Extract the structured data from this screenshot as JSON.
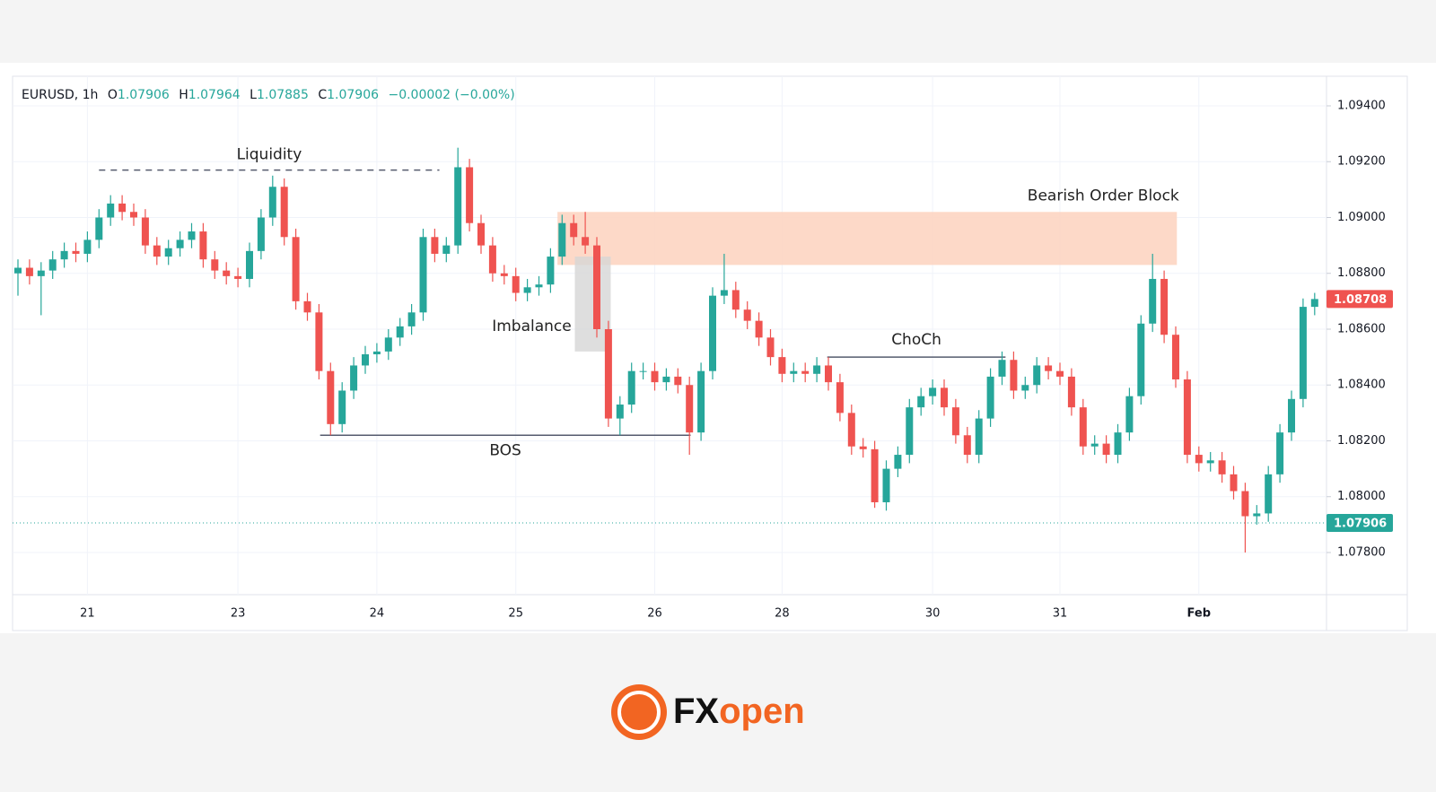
{
  "chart_data": {
    "type": "candlestick",
    "header": {
      "symbol": "EURUSD, 1h",
      "o_label": "O",
      "open": 1.07906,
      "h_label": "H",
      "high": 1.07964,
      "l_label": "L",
      "low": 1.07885,
      "c_label": "C",
      "close": 1.07906,
      "change": "−0.00002 (−0.00%)"
    },
    "up_color": "#26a69a",
    "down_color": "#ef5350",
    "categories": [
      null,
      null,
      null,
      null,
      null,
      null,
      "21",
      null,
      null,
      null,
      null,
      null,
      null,
      null,
      null,
      null,
      null,
      null,
      null,
      "23",
      null,
      null,
      null,
      null,
      null,
      null,
      null,
      null,
      null,
      null,
      null,
      "24",
      null,
      null,
      null,
      null,
      null,
      null,
      null,
      null,
      null,
      null,
      null,
      "25",
      null,
      null,
      null,
      null,
      null,
      null,
      null,
      null,
      null,
      null,
      null,
      "26",
      null,
      null,
      null,
      null,
      null,
      null,
      null,
      null,
      null,
      null,
      "28",
      null,
      null,
      null,
      null,
      null,
      null,
      null,
      null,
      null,
      null,
      null,
      null,
      "30",
      null,
      null,
      null,
      null,
      null,
      null,
      null,
      null,
      null,
      null,
      "31",
      null,
      null,
      null,
      null,
      null,
      null,
      null,
      null,
      null,
      null,
      null,
      "Feb",
      null,
      null,
      null,
      null,
      null,
      null,
      null,
      null,
      null,
      null
    ],
    "open": [
      1.088,
      1.0882,
      1.0879,
      1.0881,
      1.0885,
      1.0888,
      1.0887,
      1.0892,
      1.09,
      1.0905,
      1.0902,
      1.09,
      1.089,
      1.0886,
      1.0889,
      1.0892,
      1.0895,
      1.0885,
      1.0881,
      1.0879,
      1.0878,
      1.0888,
      1.09,
      1.0911,
      1.0893,
      1.087,
      1.0866,
      1.0845,
      1.0826,
      1.0838,
      1.0847,
      1.0851,
      1.0852,
      1.0857,
      1.0861,
      1.0866,
      1.0893,
      1.0887,
      1.089,
      1.0918,
      1.0898,
      1.089,
      1.088,
      1.0879,
      1.0873,
      1.0875,
      1.0876,
      1.0886,
      1.0898,
      1.0893,
      1.089,
      1.086,
      1.0828,
      1.0833,
      1.0845,
      1.0845,
      1.0841,
      1.0843,
      1.084,
      1.0823,
      1.0845,
      1.0872,
      1.0874,
      1.0867,
      1.0863,
      1.0857,
      1.085,
      1.0844,
      1.0845,
      1.0844,
      1.0847,
      1.0841,
      1.083,
      1.0818,
      1.0817,
      1.0798,
      1.081,
      1.0815,
      1.0832,
      1.0836,
      1.0839,
      1.0832,
      1.0822,
      1.0815,
      1.0828,
      1.0843,
      1.0849,
      1.0838,
      1.084,
      1.0847,
      1.0845,
      1.0843,
      1.0832,
      1.0818,
      1.0819,
      1.0815,
      1.0823,
      1.0836,
      1.0862,
      1.0878,
      1.0858,
      1.0842,
      1.0815,
      1.0812,
      1.0813,
      1.0808,
      1.0802,
      1.0793,
      1.0794,
      1.0808,
      1.0823,
      1.0835,
      1.0868
    ],
    "high": [
      1.0885,
      1.0885,
      1.0884,
      1.0888,
      1.0891,
      1.0891,
      1.0895,
      1.0903,
      1.0908,
      1.0908,
      1.0905,
      1.0903,
      1.0893,
      1.0892,
      1.0895,
      1.0898,
      1.0898,
      1.0888,
      1.0884,
      1.0882,
      1.0891,
      1.0903,
      1.0915,
      1.0914,
      1.0896,
      1.0873,
      1.0869,
      1.0848,
      1.0841,
      1.085,
      1.0854,
      1.0855,
      1.086,
      1.0864,
      1.0869,
      1.0896,
      1.0896,
      1.0893,
      1.0925,
      1.0921,
      1.0901,
      1.0893,
      1.0883,
      1.0882,
      1.0878,
      1.0879,
      1.0889,
      1.0901,
      1.0901,
      1.0902,
      1.0893,
      1.0863,
      1.0836,
      1.0848,
      1.0848,
      1.0848,
      1.0846,
      1.0846,
      1.0843,
      1.0848,
      1.0875,
      1.0887,
      1.0877,
      1.087,
      1.0866,
      1.086,
      1.0853,
      1.0848,
      1.0848,
      1.085,
      1.085,
      1.0844,
      1.0833,
      1.0821,
      1.082,
      1.0813,
      1.0818,
      1.0835,
      1.0839,
      1.0842,
      1.0842,
      1.0835,
      1.0825,
      1.0831,
      1.0846,
      1.0852,
      1.0852,
      1.0843,
      1.085,
      1.085,
      1.0848,
      1.0846,
      1.0835,
      1.0822,
      1.0822,
      1.0826,
      1.0839,
      1.0865,
      1.0887,
      1.0881,
      1.0861,
      1.0845,
      1.0818,
      1.0816,
      1.0816,
      1.0811,
      1.0805,
      1.0797,
      1.0811,
      1.0826,
      1.0838,
      1.0871,
      1.0873
    ],
    "low": [
      1.0872,
      1.0876,
      1.0865,
      1.0878,
      1.0882,
      1.0884,
      1.0884,
      1.0889,
      1.0897,
      1.0899,
      1.0897,
      1.0887,
      1.0883,
      1.0883,
      1.0886,
      1.0889,
      1.0882,
      1.0878,
      1.0876,
      1.0875,
      1.0875,
      1.0885,
      1.0897,
      1.089,
      1.0867,
      1.0863,
      1.0842,
      1.0822,
      1.0823,
      1.0835,
      1.0844,
      1.0848,
      1.0849,
      1.0854,
      1.0858,
      1.0863,
      1.0884,
      1.0884,
      1.0887,
      1.0895,
      1.0887,
      1.0877,
      1.0876,
      1.087,
      1.087,
      1.0872,
      1.0873,
      1.0883,
      1.089,
      1.0887,
      1.0857,
      1.0825,
      1.0822,
      1.083,
      1.0842,
      1.0838,
      1.0838,
      1.0837,
      1.0815,
      1.082,
      1.0842,
      1.0869,
      1.0864,
      1.086,
      1.0854,
      1.0847,
      1.0841,
      1.0841,
      1.0841,
      1.0841,
      1.0838,
      1.0827,
      1.0815,
      1.0814,
      1.0796,
      1.0795,
      1.0807,
      1.0812,
      1.0829,
      1.0833,
      1.0829,
      1.0819,
      1.0812,
      1.0812,
      1.0825,
      1.084,
      1.0835,
      1.0835,
      1.0837,
      1.0842,
      1.084,
      1.0829,
      1.0815,
      1.0815,
      1.0812,
      1.0812,
      1.082,
      1.0833,
      1.0859,
      1.0855,
      1.0839,
      1.0812,
      1.0809,
      1.0809,
      1.0805,
      1.0799,
      1.078,
      1.079,
      1.0791,
      1.0805,
      1.082,
      1.0832,
      1.0865
    ],
    "close": [
      1.0882,
      1.0879,
      1.0881,
      1.0885,
      1.0888,
      1.0887,
      1.0892,
      1.09,
      1.0905,
      1.0902,
      1.09,
      1.089,
      1.0886,
      1.0889,
      1.0892,
      1.0895,
      1.0885,
      1.0881,
      1.0879,
      1.0878,
      1.0888,
      1.09,
      1.0911,
      1.0893,
      1.087,
      1.0866,
      1.0845,
      1.0826,
      1.0838,
      1.0847,
      1.0851,
      1.0852,
      1.0857,
      1.0861,
      1.0866,
      1.0893,
      1.0887,
      1.089,
      1.0918,
      1.0898,
      1.089,
      1.088,
      1.0879,
      1.0873,
      1.0875,
      1.0876,
      1.0886,
      1.0898,
      1.0893,
      1.089,
      1.086,
      1.0828,
      1.0833,
      1.0845,
      1.0845,
      1.0841,
      1.0843,
      1.084,
      1.0823,
      1.0845,
      1.0872,
      1.0874,
      1.0867,
      1.0863,
      1.0857,
      1.085,
      1.0844,
      1.0845,
      1.0844,
      1.0847,
      1.0841,
      1.083,
      1.0818,
      1.0817,
      1.0798,
      1.081,
      1.0815,
      1.0832,
      1.0836,
      1.0839,
      1.0832,
      1.0822,
      1.0815,
      1.0828,
      1.0843,
      1.0849,
      1.0838,
      1.084,
      1.0847,
      1.0845,
      1.0843,
      1.0832,
      1.0818,
      1.0819,
      1.0815,
      1.0823,
      1.0836,
      1.0862,
      1.0878,
      1.0858,
      1.0842,
      1.0815,
      1.0812,
      1.0813,
      1.0808,
      1.0802,
      1.0793,
      1.0794,
      1.0808,
      1.0823,
      1.0835,
      1.0868,
      1.08708
    ],
    "ylim": [
      1.07649,
      1.09506
    ],
    "yticks": [
      {
        "value": 1.078,
        "label": "1.07800"
      },
      {
        "value": 1.08,
        "label": "1.08000"
      },
      {
        "value": 1.082,
        "label": "1.08200"
      },
      {
        "value": 1.084,
        "label": "1.08400"
      },
      {
        "value": 1.086,
        "label": "1.08600"
      },
      {
        "value": 1.088,
        "label": "1.08800"
      },
      {
        "value": 1.09,
        "label": "1.09000"
      },
      {
        "value": 1.092,
        "label": "1.09200"
      },
      {
        "value": 1.094,
        "label": "1.09400"
      }
    ],
    "grid": true,
    "last_price": 1.08708,
    "current_price": 1.07906,
    "annotations": {
      "liquidity": {
        "text": "Liquidity",
        "level": 1.0917,
        "start": 7,
        "end": 36.4
      },
      "order_block": {
        "text": "Bearish Order Block",
        "top": 1.0902,
        "bottom": 1.0883,
        "start": 46.6,
        "end": 100.1
      },
      "imbalance": {
        "text": "Imbalance",
        "top": 1.0886,
        "bottom": 1.0852,
        "start": 48.1,
        "end": 51.2
      },
      "choch": {
        "text": "ChoCh",
        "level": 1.085,
        "start": 69.9,
        "end": 85.3
      },
      "bos": {
        "text": "BOS",
        "level": 1.0822,
        "start": 26.1,
        "end": 58.1
      }
    }
  },
  "footer": {
    "brand_dark": "FX",
    "brand_color": "open"
  }
}
